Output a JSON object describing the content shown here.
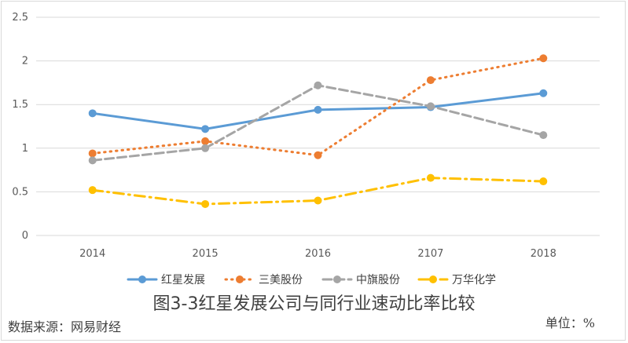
{
  "chart_data": {
    "type": "line",
    "categories": [
      "2014",
      "2015",
      "2016",
      "2107",
      "2018"
    ],
    "ylim": [
      0,
      2.5
    ],
    "yticks": [
      "0",
      "0.5",
      "1",
      "1.5",
      "2",
      "2.5"
    ],
    "grid": true,
    "legend_position": "bottom",
    "series": [
      {
        "name": "红星发展",
        "values": [
          1.4,
          1.22,
          1.44,
          1.47,
          1.63
        ],
        "color": "#5B9BD5",
        "style": "solid"
      },
      {
        "name": "三美股份",
        "values": [
          0.94,
          1.08,
          0.92,
          1.78,
          2.03
        ],
        "color": "#ED7D31",
        "style": "dot"
      },
      {
        "name": "中旗股份",
        "values": [
          0.86,
          1.0,
          1.72,
          1.48,
          1.15
        ],
        "color": "#A5A5A5",
        "style": "dash"
      },
      {
        "name": "万华化学",
        "values": [
          0.52,
          0.36,
          0.4,
          0.66,
          0.62
        ],
        "color": "#FFC000",
        "style": "dashdot"
      }
    ]
  },
  "caption": "图3-3红星发展公司与同行业速动比率比较",
  "source": "数据来源：网易财经",
  "unit": "单位：%"
}
